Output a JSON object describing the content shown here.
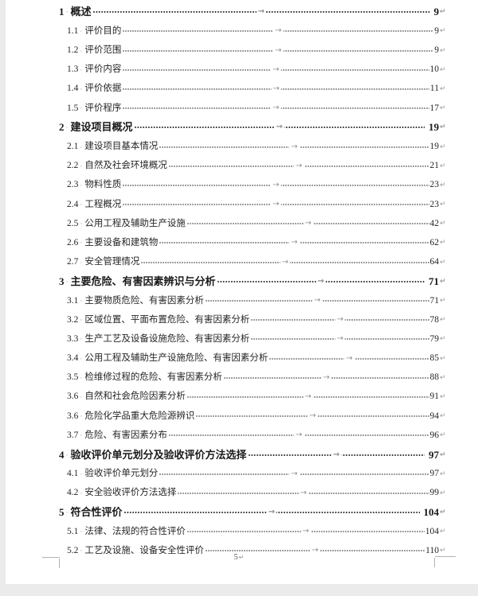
{
  "document": {
    "marks": {
      "space_dot": "·",
      "tab_arrow": "→",
      "paragraph_mark": "↵"
    },
    "footer": {
      "page_number": "5"
    },
    "toc_entries": [
      {
        "level": 1,
        "number": "1",
        "title": "概述",
        "page": "9"
      },
      {
        "level": 2,
        "number": "1.1",
        "title": "评价目的",
        "page": "9"
      },
      {
        "level": 2,
        "number": "1.2",
        "title": "评价范围",
        "page": "9"
      },
      {
        "level": 2,
        "number": "1.3",
        "title": "评价内容",
        "page": "10"
      },
      {
        "level": 2,
        "number": "1.4",
        "title": "评价依据",
        "page": "11"
      },
      {
        "level": 2,
        "number": "1.5",
        "title": "评价程序",
        "page": "17"
      },
      {
        "level": 1,
        "number": "2",
        "title": "建设项目概况",
        "page": "19"
      },
      {
        "level": 2,
        "number": "2.1",
        "title": "建设项目基本情况",
        "page": "19"
      },
      {
        "level": 2,
        "number": "2.2",
        "title": "自然及社会环境概况",
        "page": "21"
      },
      {
        "level": 2,
        "number": "2.3",
        "title": "物料性质",
        "page": "23"
      },
      {
        "level": 2,
        "number": "2.4",
        "title": "工程概况",
        "page": "23"
      },
      {
        "level": 2,
        "number": "2.5",
        "title": "公用工程及辅助生产设施",
        "page": "42"
      },
      {
        "level": 2,
        "number": "2.6",
        "title": "主要设备和建筑物",
        "page": "62"
      },
      {
        "level": 2,
        "number": "2.7",
        "title": "安全管理情况",
        "page": "64"
      },
      {
        "level": 1,
        "number": "3",
        "title": "主要危险、有害因素辨识与分析",
        "page": "71"
      },
      {
        "level": 2,
        "number": "3.1",
        "title": "主要物质危险、有害因素分析",
        "page": "71"
      },
      {
        "level": 2,
        "number": "3.2",
        "title": "区域位置、平面布置危险、有害因素分析",
        "page": "78"
      },
      {
        "level": 2,
        "number": "3.3",
        "title": "生产工艺及设备设施危险、有害因素分析",
        "page": "79"
      },
      {
        "level": 2,
        "number": "3.4",
        "title": "公用工程及辅助生产设施危险、有害因素分析",
        "page": "85"
      },
      {
        "level": 2,
        "number": "3.5",
        "title": "检维修过程的危险、有害因素分析",
        "page": "88"
      },
      {
        "level": 2,
        "number": "3.6",
        "title": "自然和社会危险因素分析",
        "page": "91"
      },
      {
        "level": 2,
        "number": "3.6",
        "title": "危险化学品重大危险源辨识",
        "page": "94"
      },
      {
        "level": 2,
        "number": "3.7",
        "title": "危险、有害因素分布",
        "page": "96"
      },
      {
        "level": 1,
        "number": "4",
        "title": "验收评价单元划分及验收评价方法选择",
        "page": "97"
      },
      {
        "level": 2,
        "number": "4.1",
        "title": "验收评价单元划分",
        "page": "97"
      },
      {
        "level": 2,
        "number": "4.2",
        "title": "安全验收评价方法选择",
        "page": "99"
      },
      {
        "level": 1,
        "number": "5",
        "title": "符合性评价",
        "page": "104"
      },
      {
        "level": 2,
        "number": "5.1",
        "title": "法律、法规的符合性评价",
        "page": "104"
      },
      {
        "level": 2,
        "number": "5.2",
        "title": "工艺及设施、设备安全性评价",
        "page": "110"
      }
    ]
  }
}
